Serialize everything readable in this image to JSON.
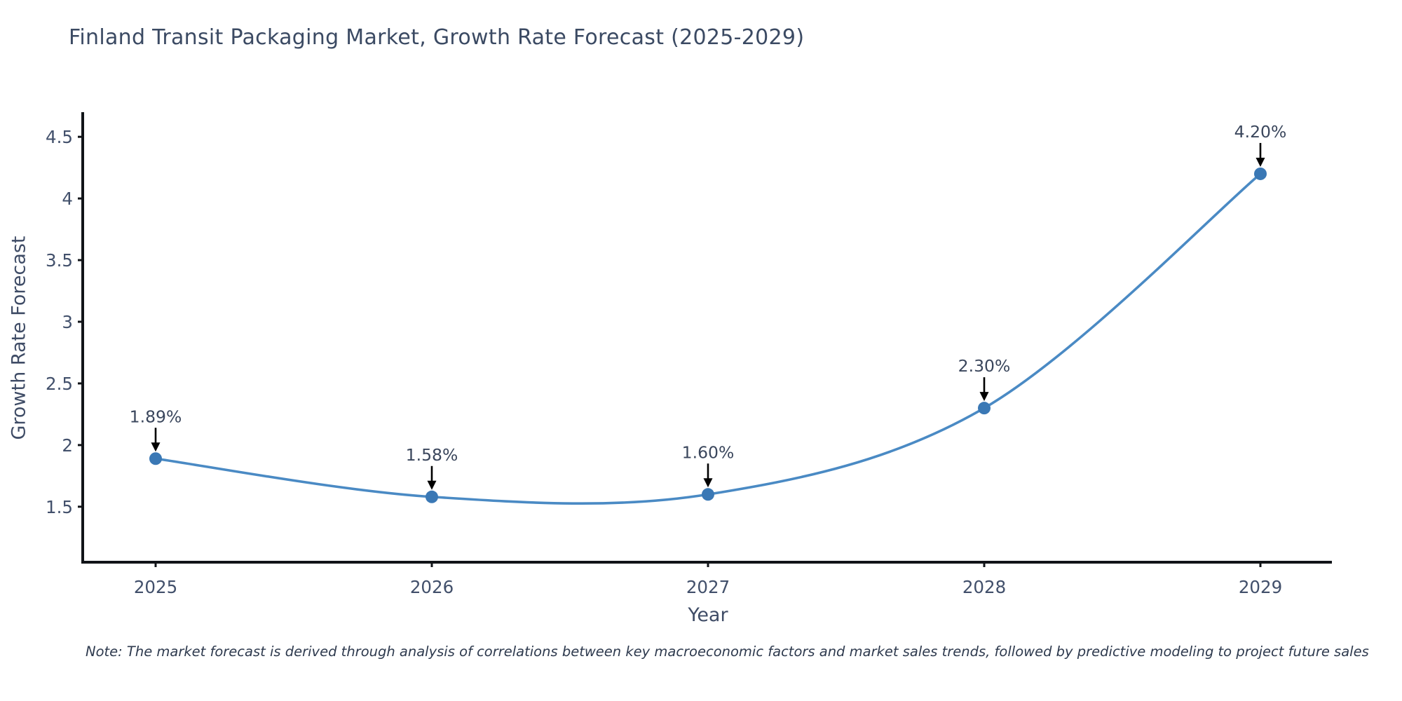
{
  "title": "Finland Transit Packaging Market, Growth Rate Forecast (2025-2029)",
  "note": "Note: The market forecast is derived through analysis of correlations between key macroeconomic factors and market sales trends, followed by predictive modeling to project future sales",
  "chart_data": {
    "type": "line",
    "title": "Finland Transit Packaging Market, Growth Rate Forecast (2025-2029)",
    "xlabel": "Year",
    "ylabel": "Growth Rate Forecast",
    "x": [
      2025,
      2026,
      2027,
      2028,
      2029
    ],
    "values": [
      1.89,
      1.58,
      1.6,
      2.3,
      4.2
    ],
    "point_labels": [
      "1.89%",
      "1.58%",
      "1.60%",
      "2.30%",
      "4.20%"
    ],
    "yticks": [
      1.5,
      2,
      2.5,
      3,
      3.5,
      4,
      4.5
    ],
    "ytick_labels": [
      "1.5",
      "2",
      "2.5",
      "3",
      "3.5",
      "4",
      "4.5"
    ],
    "ylim": [
      1.05,
      4.7
    ],
    "line_shape": "spline",
    "grid": false,
    "legend": "none",
    "annotations_style": "value label above point with downward black arrow",
    "colors": {
      "line": "#4a8ac4",
      "marker": "#3a78b5",
      "axis": "#111418",
      "arrow": "#000000",
      "title_text": "#3b4a63",
      "tick_text": "#42506b",
      "annotation_text": "#3a465c",
      "background": "#ffffff"
    }
  }
}
